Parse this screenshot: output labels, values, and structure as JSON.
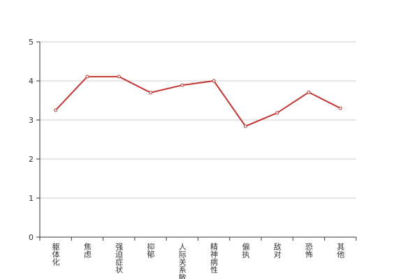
{
  "chart_data": {
    "type": "line",
    "categories": [
      "躯体化",
      "焦虑",
      "强迫症状",
      "抑郁",
      "人际关系敏感",
      "精神病性",
      "偏执",
      "敌对",
      "恐怖",
      "其他"
    ],
    "values": [
      3.25,
      4.11,
      4.11,
      3.7,
      3.89,
      4.0,
      2.84,
      3.18,
      3.71,
      3.3
    ],
    "color": "#c23531",
    "ylim": [
      0,
      5
    ],
    "yticks": [
      0,
      1,
      2,
      3,
      4,
      5
    ],
    "grid": true
  }
}
